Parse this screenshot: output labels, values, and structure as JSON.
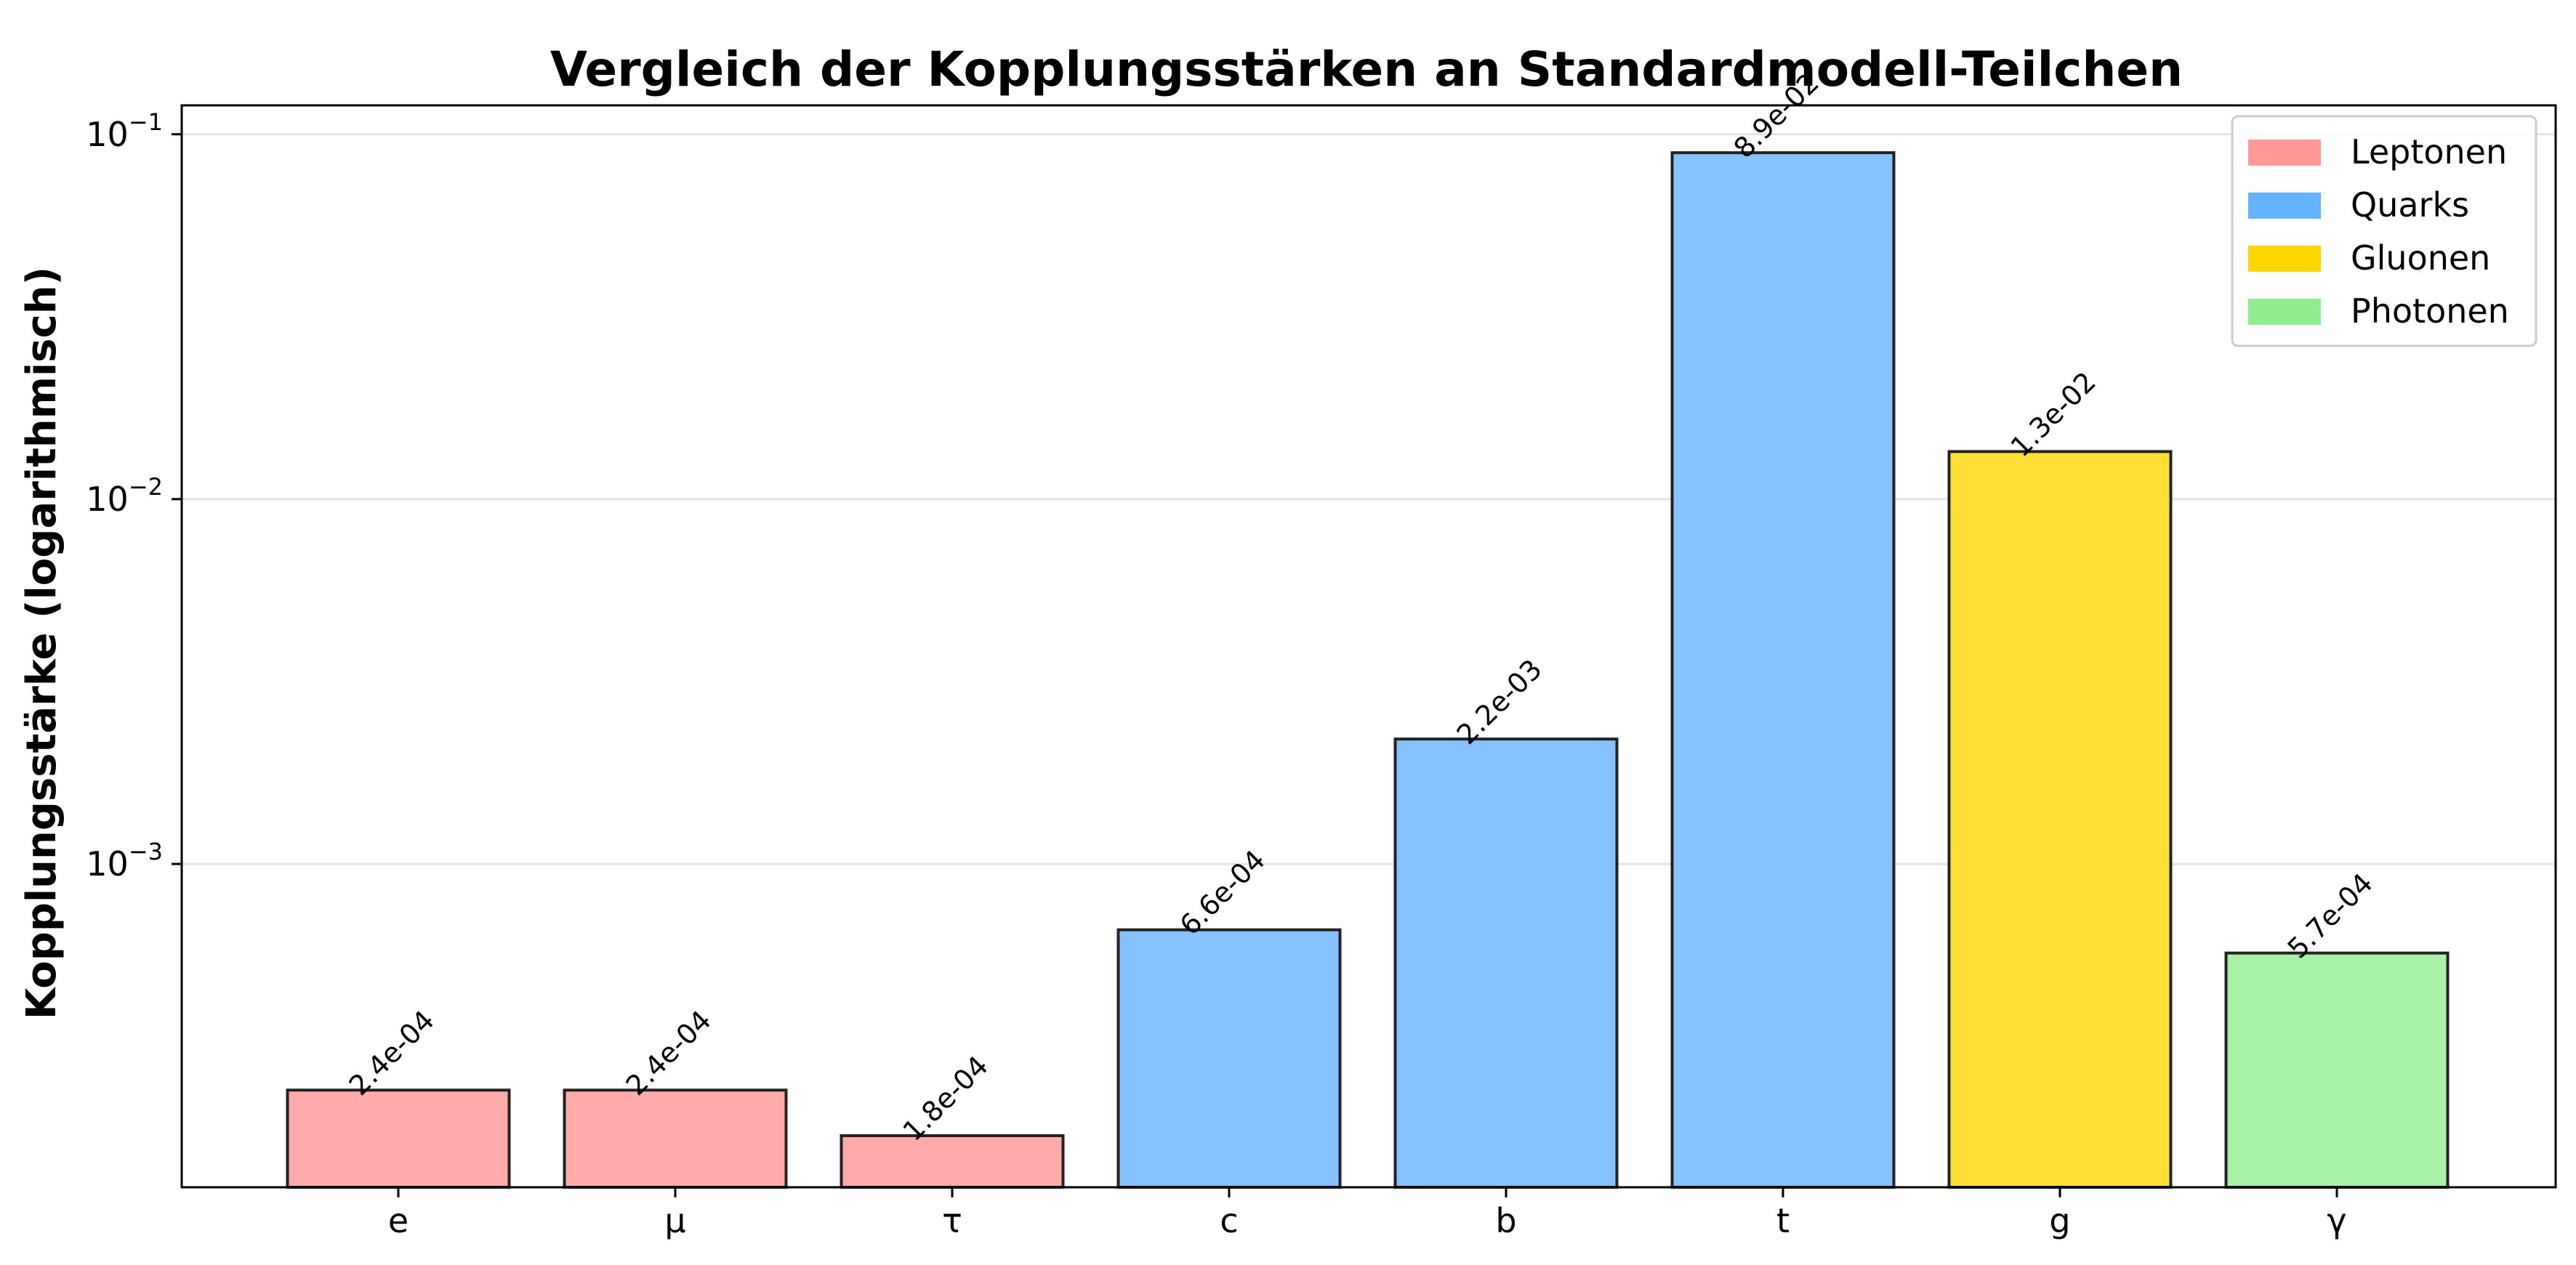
{
  "chart_data": {
    "type": "bar",
    "title": "Vergleich der Kopplungsstärken an Standardmodell-Teilchen",
    "ylabel": "Kopplungsstärke (logarithmisch)",
    "xlabel": "",
    "yscale": "log",
    "ylim": [
      0.00013,
      0.12
    ],
    "yticks": [
      {
        "value": 0.001,
        "base": "10",
        "exp": "−3"
      },
      {
        "value": 0.01,
        "base": "10",
        "exp": "−2"
      },
      {
        "value": 0.1,
        "base": "10",
        "exp": "−1"
      }
    ],
    "grid": "y",
    "legend_position": "top-right",
    "categories": [
      "e",
      "μ",
      "τ",
      "c",
      "b",
      "t",
      "g",
      "γ"
    ],
    "values": [
      0.00024,
      0.00024,
      0.00018,
      0.00066,
      0.0022,
      0.089,
      0.0135,
      0.00057
    ],
    "value_labels": [
      "2.4e-04",
      "2.4e-04",
      "1.8e-04",
      "6.6e-04",
      "2.2e-03",
      "8.9e-02",
      "1.3e-02",
      "5.7e-04"
    ],
    "groups": [
      "Leptonen",
      "Leptonen",
      "Leptonen",
      "Quarks",
      "Quarks",
      "Quarks",
      "Gluonen",
      "Photonen"
    ],
    "legend": [
      {
        "name": "Leptonen",
        "color": "#ff9999"
      },
      {
        "name": "Quarks",
        "color": "#66b3ff"
      },
      {
        "name": "Gluonen",
        "color": "#ffd700"
      },
      {
        "name": "Photonen",
        "color": "#90ee90"
      }
    ],
    "bar_colors": {
      "Leptonen": "#ffabab",
      "Quarks": "#85c2ff",
      "Gluonen": "#ffdf33",
      "Photonen": "#a6f1a6"
    }
  }
}
